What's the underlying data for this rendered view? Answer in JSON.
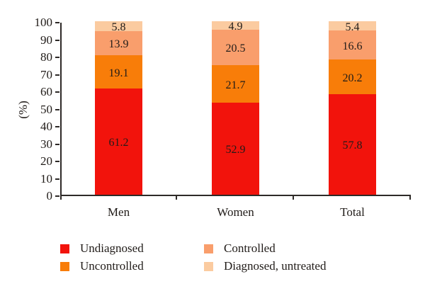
{
  "chart_data": {
    "type": "bar",
    "stacked": true,
    "title": "",
    "categories": [
      "Men",
      "Women",
      "Total"
    ],
    "series": [
      {
        "name": "Undiagnosed",
        "color": "#f2130c",
        "values": [
          61.2,
          52.9,
          57.8
        ]
      },
      {
        "name": "Uncontrolled",
        "color": "#f87d09",
        "values": [
          19.1,
          21.7,
          20.2
        ]
      },
      {
        "name": "Controlled",
        "color": "#f99e6c",
        "values": [
          13.9,
          20.5,
          16.6
        ]
      },
      {
        "name": "Diagnosed, untreated",
        "color": "#fbcba0",
        "values": [
          5.8,
          4.9,
          5.4
        ]
      }
    ],
    "xlabel": "",
    "ylabel": "(%)",
    "ylim": [
      0,
      100
    ],
    "yticks": [
      0,
      10,
      20,
      30,
      40,
      50,
      60,
      70,
      80,
      90,
      100
    ],
    "grid": false,
    "value_labels": true,
    "legend_position": "bottom",
    "legend_columns": [
      [
        0,
        1
      ],
      [
        2,
        3
      ]
    ]
  },
  "colors": {
    "axis": "#2e2a28",
    "text": "#211c19",
    "background": "#ffffff"
  }
}
